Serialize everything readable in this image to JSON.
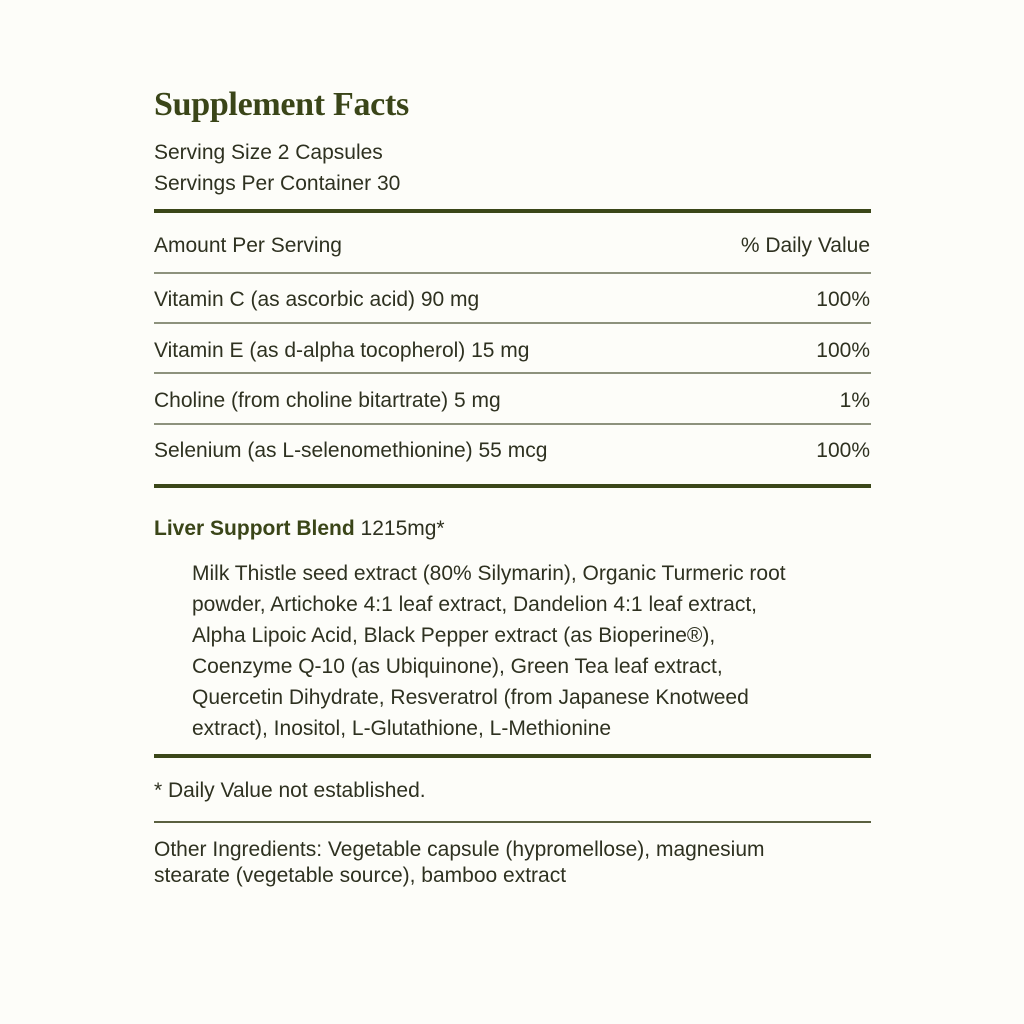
{
  "title": "Supplement Facts",
  "serving_size": "Serving Size 2 Capsules",
  "servings_per_container": "Servings Per Container 30",
  "header": {
    "amount": "Amount Per Serving",
    "dv": "% Daily Value"
  },
  "nutrients": [
    {
      "name": "Vitamin C (as ascorbic acid) 90 mg",
      "dv": "100%"
    },
    {
      "name": "Vitamin E (as d-alpha tocopherol) 15 mg",
      "dv": "100%"
    },
    {
      "name": "Choline (from choline bitartrate) 5 mg",
      "dv": "1%"
    },
    {
      "name": "Selenium (as L-selenomethionine) 55 mcg",
      "dv": "100%"
    }
  ],
  "blend": {
    "name": "Liver Support Blend",
    "amount": "1215mg*",
    "ingredient_lines": [
      "Milk Thistle seed extract (80% Silymarin), Organic Turmeric root",
      "powder, Artichoke 4:1 leaf extract, Dandelion 4:1 leaf extract,",
      "Alpha Lipoic Acid, Black Pepper extract (as Bioperine®),",
      "Coenzyme Q-10 (as Ubiquinone), Green Tea leaf extract,",
      "Quercetin Dihydrate, Resveratrol (from Japanese Knotweed",
      "extract), Inositol, L-Glutathione, L-Methionine"
    ]
  },
  "footnote": "* Daily Value not established.",
  "other_ingredients_lines": [
    "Other Ingredients: Vegetable capsule (hypromellose), magnesium",
    "stearate (vegetable source), bamboo extract"
  ],
  "colors": {
    "accent": "#3a4518",
    "text": "#2e3120",
    "background": "#fdfdf9"
  }
}
